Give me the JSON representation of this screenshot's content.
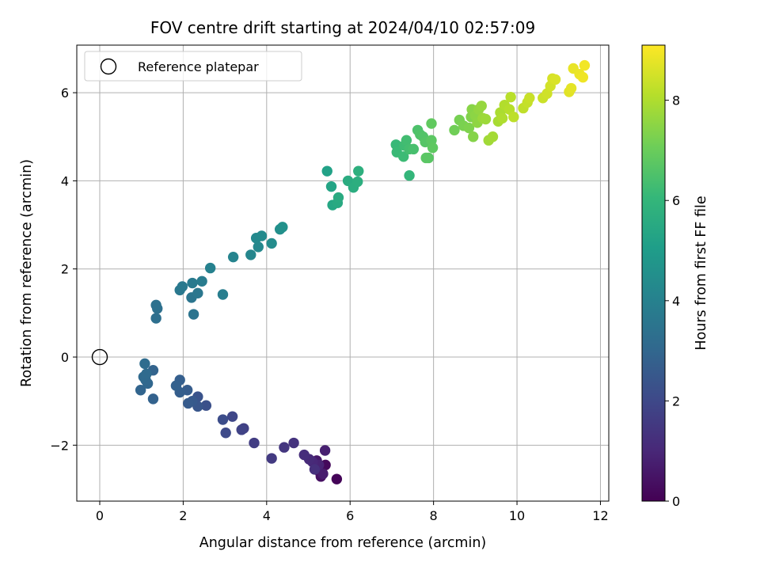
{
  "chart_data": {
    "type": "scatter",
    "title": "FOV centre drift starting at 2024/04/10 02:57:09",
    "xlabel": "Angular distance from reference (arcmin)",
    "ylabel": "Rotation from reference (arcmin)",
    "xlim": [
      -0.55,
      12.2
    ],
    "ylim": [
      -3.27,
      7.08
    ],
    "xticks": [
      0,
      2,
      4,
      6,
      8,
      10,
      12
    ],
    "yticks": [
      -2,
      0,
      2,
      4,
      6
    ],
    "grid": true,
    "legend": {
      "placement": "upper-left",
      "entries": [
        "Reference platepar"
      ]
    },
    "reference_point": {
      "x": 0,
      "y": 0
    },
    "colorbar": {
      "label": "Hours from first FF file",
      "colormap": "viridis",
      "range": [
        0,
        9.1
      ],
      "ticks": [
        0,
        2,
        4,
        6,
        8
      ]
    },
    "colors": {
      "viridis": [
        "#440154",
        "#482878",
        "#3e4989",
        "#31688e",
        "#26828e",
        "#1f9e89",
        "#35b779",
        "#6ece58",
        "#b5de2b",
        "#fde725"
      ],
      "grid": "#b0b0b0",
      "reference_marker": "#000000"
    },
    "series": [
      {
        "points": [
          [
            5.68,
            -2.77,
            0.1
          ],
          [
            5.41,
            -2.45,
            0.2
          ],
          [
            5.28,
            -2.62,
            0.3
          ],
          [
            5.3,
            -2.71,
            0.4
          ],
          [
            5.22,
            -2.55,
            0.5
          ],
          [
            5.2,
            -2.35,
            0.6
          ],
          [
            5.35,
            -2.65,
            0.7
          ],
          [
            5.4,
            -2.12,
            0.8
          ],
          [
            5.25,
            -2.45,
            0.9
          ],
          [
            5.1,
            -2.38,
            1.0
          ],
          [
            5.02,
            -2.32,
            1.1
          ],
          [
            4.9,
            -2.22,
            1.2
          ],
          [
            5.15,
            -2.55,
            1.25
          ],
          [
            4.65,
            -1.95,
            1.35
          ],
          [
            4.42,
            -2.05,
            1.45
          ],
          [
            4.12,
            -2.3,
            1.55
          ],
          [
            3.7,
            -1.95,
            1.65
          ],
          [
            3.45,
            -1.62,
            1.75
          ],
          [
            3.4,
            -1.65,
            1.85
          ],
          [
            3.18,
            -1.35,
            1.95
          ],
          [
            3.02,
            -1.72,
            2.05
          ],
          [
            2.95,
            -1.42,
            2.15
          ],
          [
            2.55,
            -1.1,
            2.25
          ],
          [
            2.35,
            -0.9,
            2.35
          ],
          [
            2.35,
            -1.12,
            2.45
          ],
          [
            2.22,
            -1.0,
            2.55
          ],
          [
            2.12,
            -1.05,
            2.6
          ],
          [
            2.1,
            -0.75,
            2.65
          ],
          [
            1.92,
            -0.8,
            2.7
          ],
          [
            1.92,
            -0.52,
            2.75
          ],
          [
            1.83,
            -0.65,
            2.8
          ],
          [
            1.28,
            -0.95,
            2.85
          ],
          [
            1.28,
            -0.3,
            2.9
          ],
          [
            0.98,
            -0.75,
            2.95
          ],
          [
            1.15,
            -0.6,
            3.0
          ],
          [
            1.1,
            -0.52,
            3.05
          ],
          [
            1.05,
            -0.45,
            3.1
          ],
          [
            1.12,
            -0.38,
            3.15
          ],
          [
            1.08,
            -0.15,
            3.2
          ],
          [
            1.35,
            0.88,
            3.3
          ],
          [
            1.38,
            1.1,
            3.35
          ],
          [
            1.35,
            1.18,
            3.4
          ],
          [
            2.25,
            0.97,
            3.5
          ],
          [
            2.2,
            1.35,
            3.55
          ],
          [
            2.35,
            1.45,
            3.6
          ],
          [
            1.92,
            1.52,
            3.65
          ],
          [
            1.98,
            1.6,
            3.7
          ],
          [
            2.22,
            1.68,
            3.75
          ],
          [
            2.45,
            1.72,
            3.8
          ],
          [
            2.95,
            1.42,
            3.9
          ],
          [
            2.65,
            2.02,
            4.0
          ],
          [
            3.2,
            2.27,
            4.1
          ],
          [
            3.62,
            2.32,
            4.2
          ],
          [
            3.8,
            2.5,
            4.25
          ],
          [
            3.75,
            2.7,
            4.3
          ],
          [
            3.88,
            2.75,
            4.35
          ],
          [
            4.12,
            2.58,
            4.4
          ],
          [
            4.32,
            2.9,
            4.5
          ],
          [
            4.38,
            2.95,
            4.6
          ],
          [
            5.45,
            4.22,
            5.2
          ],
          [
            5.55,
            3.87,
            5.3
          ],
          [
            5.58,
            3.45,
            5.4
          ],
          [
            5.7,
            3.5,
            5.5
          ],
          [
            5.72,
            3.62,
            5.55
          ],
          [
            5.95,
            4.0,
            5.6
          ],
          [
            6.08,
            3.85,
            5.65
          ],
          [
            6.18,
            3.98,
            5.7
          ],
          [
            6.2,
            4.22,
            5.75
          ],
          [
            7.42,
            4.12,
            6.0
          ],
          [
            7.1,
            4.82,
            6.1
          ],
          [
            7.12,
            4.65,
            6.15
          ],
          [
            7.28,
            4.55,
            6.2
          ],
          [
            7.3,
            4.8,
            6.25
          ],
          [
            7.35,
            4.92,
            6.3
          ],
          [
            7.42,
            4.72,
            6.35
          ],
          [
            7.52,
            4.72,
            6.4
          ],
          [
            7.62,
            5.15,
            6.5
          ],
          [
            7.68,
            5.05,
            6.55
          ],
          [
            7.75,
            5.0,
            6.6
          ],
          [
            7.8,
            4.88,
            6.65
          ],
          [
            7.88,
            4.52,
            6.7
          ],
          [
            7.82,
            4.52,
            6.72
          ],
          [
            7.95,
            4.92,
            6.75
          ],
          [
            7.98,
            4.75,
            6.8
          ],
          [
            7.95,
            5.3,
            6.85
          ],
          [
            8.5,
            5.15,
            7.1
          ],
          [
            8.62,
            5.38,
            7.2
          ],
          [
            8.72,
            5.25,
            7.25
          ],
          [
            8.85,
            5.2,
            7.3
          ],
          [
            8.9,
            5.45,
            7.35
          ],
          [
            8.95,
            5.0,
            7.4
          ],
          [
            8.92,
            5.62,
            7.45
          ],
          [
            9.0,
            5.48,
            7.5
          ],
          [
            9.05,
            5.32,
            7.55
          ],
          [
            9.08,
            5.62,
            7.6
          ],
          [
            9.15,
            5.7,
            7.65
          ],
          [
            9.18,
            5.42,
            7.7
          ],
          [
            9.25,
            5.4,
            7.75
          ],
          [
            9.32,
            4.92,
            7.8
          ],
          [
            9.42,
            5.0,
            7.85
          ],
          [
            9.55,
            5.35,
            7.9
          ],
          [
            9.6,
            5.55,
            7.95
          ],
          [
            9.65,
            5.42,
            8.0
          ],
          [
            9.7,
            5.72,
            8.05
          ],
          [
            9.82,
            5.62,
            8.1
          ],
          [
            9.85,
            5.9,
            8.15
          ],
          [
            9.92,
            5.45,
            8.2
          ],
          [
            10.15,
            5.65,
            8.25
          ],
          [
            10.25,
            5.78,
            8.3
          ],
          [
            10.3,
            5.88,
            8.35
          ],
          [
            10.62,
            5.88,
            8.4
          ],
          [
            10.72,
            5.98,
            8.45
          ],
          [
            10.8,
            6.15,
            8.5
          ],
          [
            10.85,
            6.32,
            8.55
          ],
          [
            10.92,
            6.3,
            8.6
          ],
          [
            11.25,
            6.02,
            8.7
          ],
          [
            11.3,
            6.1,
            8.75
          ],
          [
            11.35,
            6.55,
            8.8
          ],
          [
            11.5,
            6.42,
            8.85
          ],
          [
            11.58,
            6.35,
            8.9
          ],
          [
            11.62,
            6.62,
            8.95
          ]
        ]
      }
    ]
  }
}
